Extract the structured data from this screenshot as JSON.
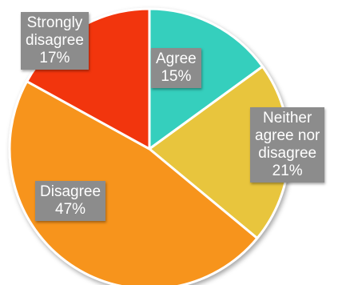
{
  "chart_data": {
    "type": "pie",
    "title": "",
    "slices": [
      {
        "label": "Agree",
        "lines": [
          "Agree"
        ],
        "value": 15,
        "value_label": "15%",
        "color": "#36cfbd"
      },
      {
        "label": "Neither agree nor disagree",
        "lines": [
          "Neither",
          "agree nor",
          "disagree"
        ],
        "value": 21,
        "value_label": "21%",
        "color": "#e8c53c"
      },
      {
        "label": "Disagree",
        "lines": [
          "Disagree"
        ],
        "value": 47,
        "value_label": "47%",
        "color": "#f7941d"
      },
      {
        "label": "Strongly disagree",
        "lines": [
          "Strongly",
          "disagree"
        ],
        "value": 17,
        "value_label": "17%",
        "color": "#f2360c"
      }
    ]
  }
}
